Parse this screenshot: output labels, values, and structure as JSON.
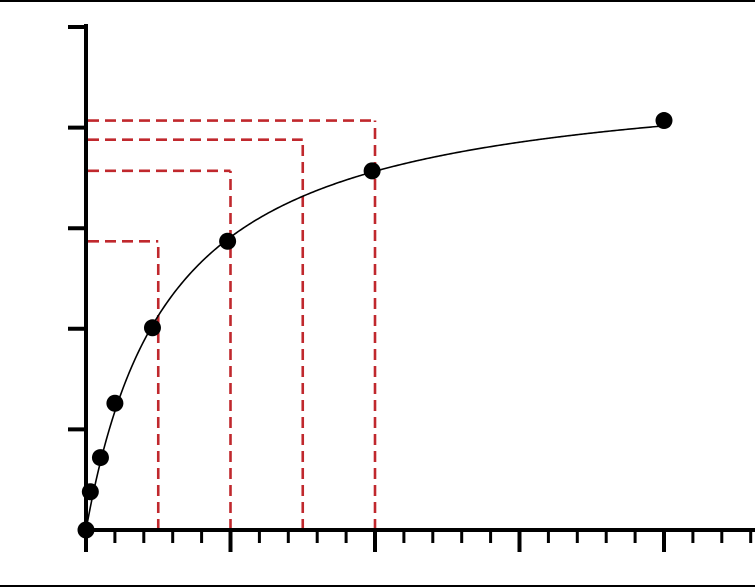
{
  "chart_data": {
    "type": "scatter",
    "title": "",
    "xlabel": "",
    "ylabel": "",
    "xlim": [
      0,
      24
    ],
    "ylim": [
      0,
      5
    ],
    "x_ticks_major": [
      0,
      5,
      10,
      15,
      20
    ],
    "x_ticks_minor_step": 1,
    "y_ticks_major": [
      0,
      1,
      2,
      3,
      4,
      5
    ],
    "grid": false,
    "legend": "none",
    "colors": {
      "points": "#000000",
      "curve": "#000000",
      "guides": "#c0282d",
      "axes": "#000000"
    },
    "series": [
      {
        "x": [
          0,
          0.15,
          0.5,
          1.0,
          2.3,
          4.9,
          9.9,
          20
        ],
        "y": [
          0,
          0.38,
          0.72,
          1.26,
          2.01,
          2.87,
          3.57,
          4.07
        ]
      }
    ],
    "fit_curve": {
      "model": "hyperbolic",
      "vmax": 4.6,
      "km": 2.9
    },
    "guide_lines": [
      {
        "x": 2.5,
        "y": 2.87
      },
      {
        "x": 5.0,
        "y": 3.57
      },
      {
        "x": 7.5,
        "y": 3.88
      },
      {
        "x": 10.0,
        "y": 4.07
      }
    ]
  }
}
